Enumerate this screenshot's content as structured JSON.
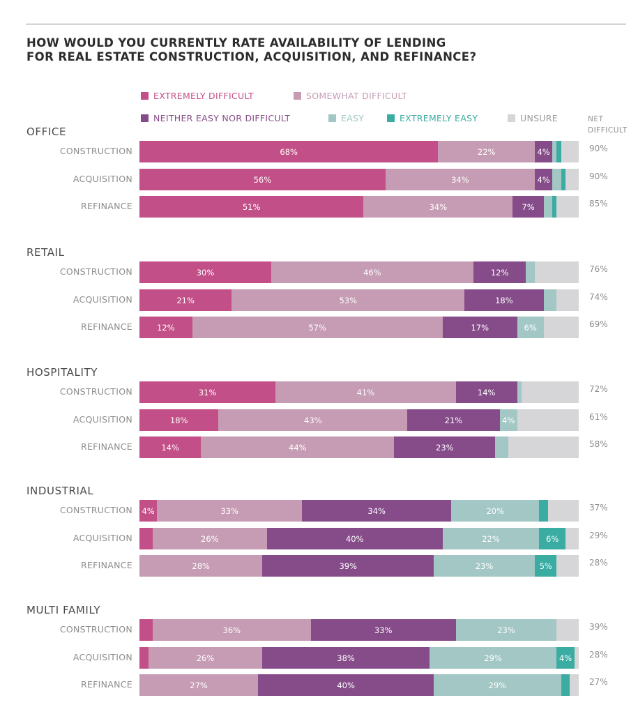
{
  "title_line1": "HOW WOULD YOU CURRENTLY RATE AVAILABILITY OF LENDING",
  "title_line2": "FOR REAL ESTATE CONSTRUCTION, ACQUISITION, AND REFINANCE?",
  "net_header_line1": "NET",
  "net_header_line2": "DIFFICULT",
  "colors": {
    "extremely_difficult": "#c24f87",
    "somewhat_difficult": "#c59cb3",
    "neither": "#854c89",
    "easy": "#a2c7c4",
    "extremely_easy": "#3aaca2",
    "unsure": "#d6d6d8"
  },
  "chart_data": {
    "type": "bar",
    "orientation": "horizontal",
    "stacked": true,
    "series": [
      {
        "key": "extremely_difficult",
        "name": "EXTREMELY DIFFICULT"
      },
      {
        "key": "somewhat_difficult",
        "name": "SOMEWHAT DIFFICULT"
      },
      {
        "key": "neither",
        "name": "NEITHER EASY NOR DIFFICULT"
      },
      {
        "key": "easy",
        "name": "EASY"
      },
      {
        "key": "extremely_easy",
        "name": "EXTREMELY EASY"
      },
      {
        "key": "unsure",
        "name": "UNSURE"
      }
    ],
    "groups": [
      {
        "name": "OFFICE",
        "rows": [
          {
            "label": "CONSTRUCTION",
            "values": [
              68,
              22,
              4,
              1,
              1,
              4
            ],
            "labels": [
              "68%",
              "22%",
              "4%",
              "",
              "",
              ""
            ],
            "net": "90%"
          },
          {
            "label": "ACQUISITION",
            "values": [
              56,
              34,
              4,
              2,
              1,
              3
            ],
            "labels": [
              "56%",
              "34%",
              "4%",
              "",
              "",
              ""
            ],
            "net": "90%"
          },
          {
            "label": "REFINANCE",
            "values": [
              51,
              34,
              7,
              2,
              1,
              5
            ],
            "labels": [
              "51%",
              "34%",
              "7%",
              "",
              "",
              ""
            ],
            "net": "85%"
          }
        ]
      },
      {
        "name": "RETAIL",
        "rows": [
          {
            "label": "CONSTRUCTION",
            "values": [
              30,
              46,
              12,
              2,
              0,
              10
            ],
            "labels": [
              "30%",
              "46%",
              "12%",
              "",
              "",
              ""
            ],
            "net": "76%"
          },
          {
            "label": "ACQUISITION",
            "values": [
              21,
              53,
              18,
              3,
              0,
              5
            ],
            "labels": [
              "21%",
              "53%",
              "18%",
              "",
              "",
              ""
            ],
            "net": "74%"
          },
          {
            "label": "REFINANCE",
            "values": [
              12,
              57,
              17,
              6,
              0,
              8
            ],
            "labels": [
              "12%",
              "57%",
              "17%",
              "6%",
              "",
              ""
            ],
            "net": "69%"
          }
        ]
      },
      {
        "name": "HOSPITALITY",
        "rows": [
          {
            "label": "CONSTRUCTION",
            "values": [
              31,
              41,
              14,
              1,
              0,
              13
            ],
            "labels": [
              "31%",
              "41%",
              "14%",
              "",
              "",
              ""
            ],
            "net": "72%"
          },
          {
            "label": "ACQUISITION",
            "values": [
              18,
              43,
              21,
              4,
              0,
              14
            ],
            "labels": [
              "18%",
              "43%",
              "21%",
              "4%",
              "",
              ""
            ],
            "net": "61%"
          },
          {
            "label": "REFINANCE",
            "values": [
              14,
              44,
              23,
              3,
              0,
              16
            ],
            "labels": [
              "14%",
              "44%",
              "23%",
              "",
              "",
              ""
            ],
            "net": "58%"
          }
        ]
      },
      {
        "name": "INDUSTRIAL",
        "rows": [
          {
            "label": "CONSTRUCTION",
            "values": [
              4,
              33,
              34,
              20,
              2,
              7
            ],
            "labels": [
              "4%",
              "33%",
              "34%",
              "20%",
              "",
              ""
            ],
            "net": "37%"
          },
          {
            "label": "ACQUISITION",
            "values": [
              3,
              26,
              40,
              22,
              6,
              3
            ],
            "labels": [
              "",
              "26%",
              "40%",
              "22%",
              "6%",
              ""
            ],
            "net": "29%"
          },
          {
            "label": "REFINANCE",
            "values": [
              0,
              28,
              39,
              23,
              5,
              5
            ],
            "labels": [
              "",
              "28%",
              "39%",
              "23%",
              "5%",
              ""
            ],
            "net": "28%"
          }
        ]
      },
      {
        "name": "MULTI FAMILY",
        "rows": [
          {
            "label": "CONSTRUCTION",
            "values": [
              3,
              36,
              33,
              23,
              0,
              5
            ],
            "labels": [
              "",
              "36%",
              "33%",
              "23%",
              "",
              ""
            ],
            "net": "39%"
          },
          {
            "label": "ACQUISITION",
            "values": [
              2,
              26,
              38,
              29,
              4,
              1
            ],
            "labels": [
              "",
              "26%",
              "38%",
              "29%",
              "4%",
              ""
            ],
            "net": "28%"
          },
          {
            "label": "REFINANCE",
            "values": [
              0,
              27,
              40,
              29,
              2,
              2
            ],
            "labels": [
              "",
              "27%",
              "40%",
              "29%",
              "",
              ""
            ],
            "net": "27%"
          }
        ]
      }
    ]
  }
}
